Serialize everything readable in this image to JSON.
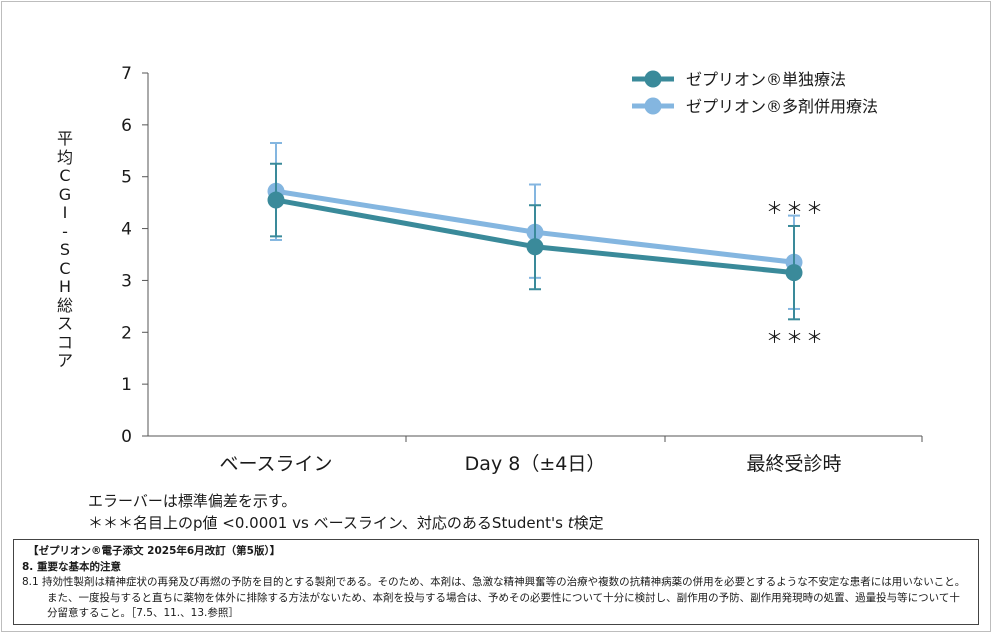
{
  "chart_data": {
    "type": "line",
    "categories": [
      "ベースライン",
      "Day 8（±4日）",
      "最終受診時"
    ],
    "ylabel": "平均CGI-SCH総スコア",
    "ylim": [
      0,
      7
    ],
    "yticks": [
      0,
      1,
      2,
      3,
      4,
      5,
      6,
      7
    ],
    "grid": false,
    "legend": "top-right",
    "series": [
      {
        "name": "ゼプリオン®単独療法",
        "color": "#3a8a9a",
        "values": [
          4.55,
          3.65,
          3.15
        ],
        "error_low": [
          3.85,
          2.83,
          2.25
        ],
        "error_high": [
          5.25,
          4.45,
          4.05
        ]
      },
      {
        "name": "ゼプリオン®多剤併用療法",
        "color": "#84b6e0",
        "values": [
          4.72,
          3.93,
          3.35
        ],
        "error_low": [
          3.78,
          3.05,
          2.45
        ],
        "error_high": [
          5.65,
          4.85,
          4.25
        ]
      }
    ],
    "annotations": [
      "＊＊＊",
      "＊＊＊"
    ]
  },
  "notes": {
    "error_bar": "エラーバーは標準偏差を示す。",
    "significance": "＊＊＊名目上のp値 <0.0001 vs ベースライン、対応のあるStudent's ",
    "significance_t": "t",
    "significance_end": "検定"
  },
  "label_box": {
    "title": "【ゼプリオン®電子添文 2025年6月改訂（第5版）】",
    "section": "8. 重要な基本的注意",
    "body": "8.1 持効性製剤は精神症状の再発及び再燃の予防を目的とする製剤である。そのため、本剤は、急激な精神興奮等の治療や複数の抗精神病薬の併用を必要とするような不安定な患者には用いないこと。また、一度投与すると直ちに薬物を体外に排除する方法がないため、本剤を投与する場合は、予めその必要性について十分に検討し、副作用の予防、副作用発現時の処置、過量投与等について十分留意すること。［7.5、11.、13.参照］"
  }
}
